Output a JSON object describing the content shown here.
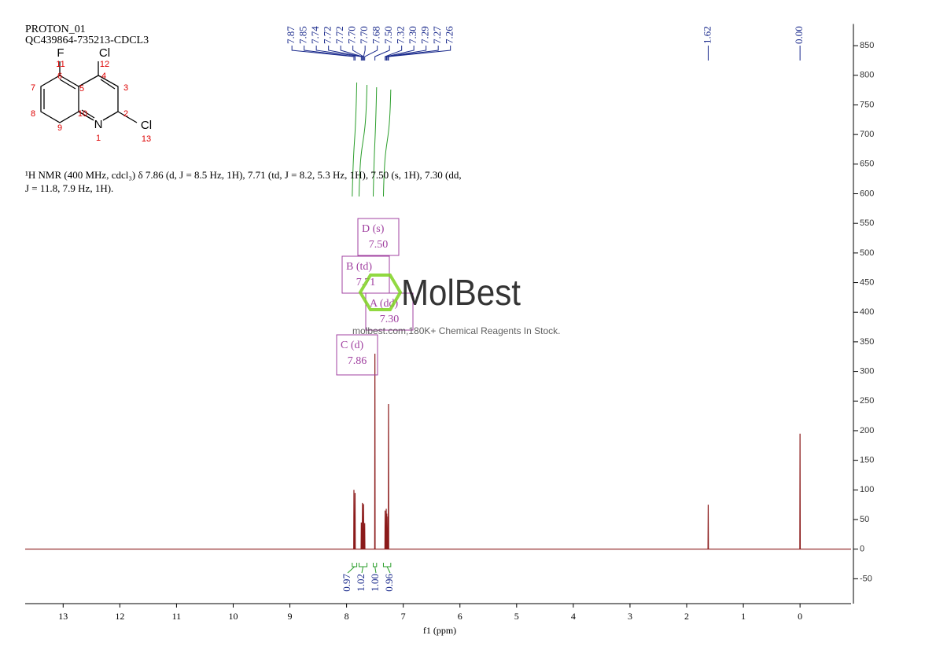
{
  "header": {
    "title": "PROTON_01",
    "sample": "QC439864-735213-CDCL3"
  },
  "structure": {
    "atoms": [
      "F",
      "Cl",
      "N",
      "Cl"
    ],
    "numbers": [
      "11",
      "12",
      "7",
      "6",
      "4",
      "5",
      "3",
      "8",
      "10",
      "2",
      "9",
      "1",
      "13"
    ]
  },
  "description": "¹H NMR (400 MHz, cdcl₃) δ 7.86 (d, J = 8.5 Hz, 1H), 7.71 (td, J = 8.2, 5.3 Hz, 1H), 7.50 (s, 1H), 7.30 (dd, J = 11.8, 7.9 Hz, 1H).",
  "watermark": {
    "brand": "MolBest",
    "tagline": "molbest.com,180K+ Chemical Reagents In Stock."
  },
  "multiplets": [
    {
      "name": "D (s)",
      "shift": "7.50"
    },
    {
      "name": "B (td)",
      "shift": "7.71"
    },
    {
      "name": "A (dd)",
      "shift": "7.30"
    },
    {
      "name": "C (d)",
      "shift": "7.86"
    }
  ],
  "chart_data": {
    "type": "line",
    "x_label": "f1 (ppm)",
    "xlim": [
      13.67,
      -0.9
    ],
    "xticks": [
      13,
      12,
      11,
      10,
      9,
      8,
      7,
      6,
      5,
      4,
      3,
      2,
      1,
      0
    ],
    "ylim": [
      -92,
      880
    ],
    "yticks": [
      -50,
      0,
      50,
      100,
      150,
      200,
      250,
      300,
      350,
      400,
      450,
      500,
      550,
      600,
      650,
      700,
      750,
      800,
      850
    ],
    "peak_labels": [
      {
        "value": 7.87,
        "label": "7.87"
      },
      {
        "value": 7.85,
        "label": "7.85"
      },
      {
        "value": 7.74,
        "label": "7.74"
      },
      {
        "value": 7.72,
        "label": "7.72"
      },
      {
        "value": 7.72,
        "label": "7.72"
      },
      {
        "value": 7.7,
        "label": "7.70"
      },
      {
        "value": 7.7,
        "label": "7.70"
      },
      {
        "value": 7.68,
        "label": "7.68"
      },
      {
        "value": 7.5,
        "label": "7.50"
      },
      {
        "value": 7.32,
        "label": "7.32"
      },
      {
        "value": 7.3,
        "label": "7.30"
      },
      {
        "value": 7.29,
        "label": "7.29"
      },
      {
        "value": 7.27,
        "label": "7.27"
      },
      {
        "value": 7.26,
        "label": "7.26"
      },
      {
        "value": 1.62,
        "label": "1.62"
      },
      {
        "value": 0,
        "label": "0.00"
      }
    ],
    "integrals": [
      {
        "from": 7.9,
        "to": 7.82,
        "value": 0.97
      },
      {
        "from": 7.78,
        "to": 7.64,
        "value": 1.02
      },
      {
        "from": 7.53,
        "to": 7.47,
        "value": 1,
        "label": "1.00"
      },
      {
        "from": 7.35,
        "to": 7.22,
        "value": 0.96
      }
    ],
    "series": [
      {
        "name": "spectrum",
        "color": "#8b1a1a",
        "x": [
          13.67,
          7.874,
          7.87,
          7.866,
          7.854,
          7.85,
          7.846,
          7.744,
          7.74,
          7.736,
          7.724,
          7.72,
          7.716,
          7.704,
          7.7,
          7.696,
          7.684,
          7.68,
          7.676,
          7.504,
          7.5,
          7.496,
          7.324,
          7.32,
          7.316,
          7.304,
          7.3,
          7.296,
          7.294,
          7.29,
          7.286,
          7.274,
          7.27,
          7.266,
          7.264,
          7.26,
          7.256,
          1.624,
          1.62,
          1.616,
          0.004,
          0,
          -0.004,
          -0.9
        ],
        "values": [
          0,
          0,
          100,
          0,
          0,
          95,
          0,
          0,
          45,
          0,
          0,
          78,
          0,
          0,
          76,
          0,
          0,
          44,
          0,
          0,
          330,
          0,
          0,
          65,
          0,
          0,
          68,
          0,
          0,
          60,
          0,
          0,
          55,
          0,
          0,
          245,
          0,
          0,
          75,
          0,
          0,
          195,
          0,
          0
        ]
      }
    ]
  }
}
